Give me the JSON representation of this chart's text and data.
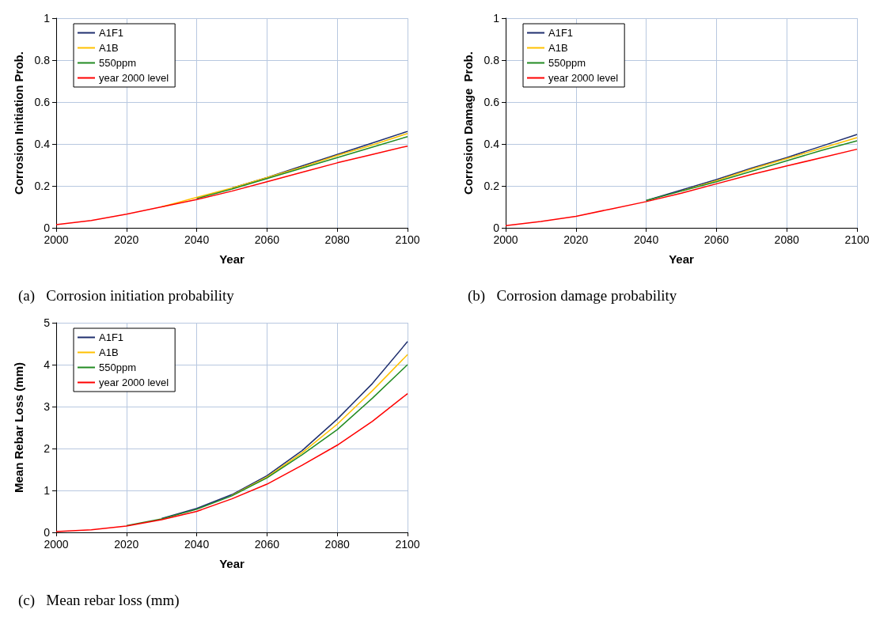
{
  "chart_data": [
    {
      "type": "line",
      "title": "(a)   Corrosion initiation probability",
      "xlabel": "Year",
      "ylabel": "Corrosion Initiation Prob.",
      "x": [
        2000,
        2010,
        2020,
        2030,
        2040,
        2050,
        2060,
        2070,
        2080,
        2090,
        2100
      ],
      "xlim": [
        2000,
        2100
      ],
      "xticks": [
        2000,
        2020,
        2040,
        2060,
        2080,
        2100
      ],
      "ylim": [
        0,
        1
      ],
      "yticks": [
        0,
        0.2,
        0.4,
        0.6,
        0.8,
        1
      ],
      "grid": true,
      "legend": "top left",
      "marker": "none",
      "line_style": "solid",
      "series": [
        {
          "name": "A1F1",
          "color": "#1f2f6e",
          "values": [
            null,
            null,
            null,
            null,
            null,
            0.19,
            0.24,
            0.295,
            0.35,
            0.405,
            0.46
          ]
        },
        {
          "name": "A1B",
          "color": "#ffc000",
          "values": [
            null,
            null,
            null,
            0.1,
            0.145,
            0.19,
            0.24,
            0.29,
            0.345,
            0.395,
            0.45
          ]
        },
        {
          "name": "550ppm",
          "color": "#228b22",
          "values": [
            null,
            null,
            null,
            null,
            0.14,
            0.185,
            0.235,
            0.285,
            0.335,
            0.385,
            0.435
          ]
        },
        {
          "name": "year 2000 level",
          "color": "#ff0000",
          "values": [
            0.015,
            0.035,
            0.065,
            0.1,
            0.135,
            0.175,
            0.22,
            0.265,
            0.31,
            0.35,
            0.39
          ]
        }
      ]
    },
    {
      "type": "line",
      "title": "(b)   Corrosion damage probability",
      "xlabel": "Year",
      "ylabel": "Corrosion Damage  Prob.",
      "x": [
        2000,
        2010,
        2020,
        2030,
        2040,
        2050,
        2060,
        2070,
        2080,
        2090,
        2100
      ],
      "xlim": [
        2000,
        2100
      ],
      "xticks": [
        2000,
        2020,
        2040,
        2060,
        2080,
        2100
      ],
      "ylim": [
        0,
        1
      ],
      "yticks": [
        0,
        0.2,
        0.4,
        0.6,
        0.8,
        1
      ],
      "grid": true,
      "legend": "top left",
      "marker": "none",
      "line_style": "solid",
      "series": [
        {
          "name": "A1F1",
          "color": "#1f2f6e",
          "values": [
            null,
            null,
            null,
            null,
            0.13,
            0.18,
            0.23,
            0.285,
            0.335,
            0.39,
            0.445
          ]
        },
        {
          "name": "A1B",
          "color": "#ffc000",
          "values": [
            null,
            null,
            null,
            null,
            null,
            0.175,
            0.225,
            0.28,
            0.33,
            0.38,
            0.43
          ]
        },
        {
          "name": "550ppm",
          "color": "#228b22",
          "values": [
            null,
            null,
            null,
            null,
            0.13,
            0.175,
            0.22,
            0.27,
            0.32,
            0.37,
            0.415
          ]
        },
        {
          "name": "year 2000 level",
          "color": "#ff0000",
          "values": [
            0.01,
            0.03,
            0.055,
            0.09,
            0.125,
            0.165,
            0.21,
            0.255,
            0.295,
            0.335,
            0.375
          ]
        }
      ]
    },
    {
      "type": "line",
      "title": "(c)   Mean rebar loss (mm)",
      "xlabel": "Year",
      "ylabel": "Mean Rebar Loss (mm)",
      "x": [
        2000,
        2010,
        2020,
        2030,
        2040,
        2050,
        2060,
        2070,
        2080,
        2090,
        2100
      ],
      "xlim": [
        2000,
        2100
      ],
      "xticks": [
        2000,
        2020,
        2040,
        2060,
        2080,
        2100
      ],
      "ylim": [
        0,
        5
      ],
      "yticks": [
        0,
        1,
        2,
        3,
        4,
        5
      ],
      "grid": true,
      "legend": "top left",
      "marker": "none",
      "line_style": "solid",
      "series": [
        {
          "name": "A1F1",
          "color": "#1f2f6e",
          "values": [
            null,
            null,
            null,
            0.33,
            0.57,
            0.9,
            1.35,
            1.95,
            2.7,
            3.55,
            4.55
          ]
        },
        {
          "name": "A1B",
          "color": "#ffc000",
          "values": [
            null,
            null,
            null,
            null,
            null,
            0.88,
            1.32,
            1.9,
            2.58,
            3.38,
            4.24
          ]
        },
        {
          "name": "550ppm",
          "color": "#228b22",
          "values": [
            null,
            null,
            0.16,
            0.32,
            0.55,
            0.87,
            1.3,
            1.85,
            2.45,
            3.2,
            4.0
          ]
        },
        {
          "name": "year 2000 level",
          "color": "#ff0000",
          "values": [
            0.02,
            0.06,
            0.15,
            0.3,
            0.5,
            0.8,
            1.15,
            1.6,
            2.08,
            2.65,
            3.31
          ]
        }
      ]
    }
  ]
}
